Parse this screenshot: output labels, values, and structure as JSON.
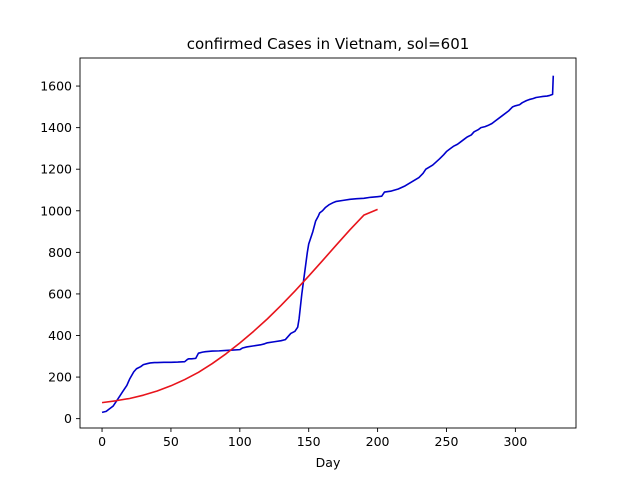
{
  "chart_data": {
    "type": "line",
    "title": "confirmed Cases in Vietnam, sol=601",
    "xlabel": "Day",
    "ylabel": "",
    "xlim": [
      -16,
      344
    ],
    "ylim": [
      -45,
      1735
    ],
    "xticks": [
      0,
      50,
      100,
      150,
      200,
      250,
      300
    ],
    "yticks": [
      0,
      200,
      400,
      600,
      800,
      1000,
      1200,
      1400,
      1600
    ],
    "grid": false,
    "series": [
      {
        "color": "#0000cc",
        "x": [
          0,
          3,
          5,
          8,
          10,
          13,
          15,
          18,
          20,
          23,
          25,
          28,
          30,
          33,
          35,
          38,
          40,
          45,
          50,
          55,
          60,
          62,
          63,
          65,
          68,
          70,
          73,
          75,
          80,
          85,
          90,
          95,
          100,
          102,
          105,
          110,
          115,
          118,
          120,
          125,
          130,
          133,
          135,
          137,
          140,
          142,
          143,
          144,
          145,
          146,
          147,
          148,
          149,
          150,
          151,
          152,
          153,
          155,
          157,
          158,
          160,
          162,
          165,
          168,
          170,
          175,
          180,
          185,
          190,
          195,
          200,
          203,
          205,
          210,
          215,
          220,
          225,
          230,
          233,
          235,
          240,
          245,
          248,
          250,
          253,
          255,
          258,
          260,
          263,
          265,
          268,
          270,
          273,
          275,
          278,
          280,
          283,
          285,
          290,
          295,
          298,
          300,
          303,
          305,
          308,
          310,
          313,
          315,
          318,
          320,
          323,
          325,
          327,
          327.5
        ],
        "y": [
          30,
          35,
          45,
          60,
          80,
          110,
          130,
          160,
          190,
          225,
          240,
          250,
          260,
          265,
          268,
          270,
          270,
          271,
          271,
          272,
          274,
          285,
          288,
          288,
          290,
          315,
          320,
          322,
          325,
          326,
          328,
          330,
          332,
          340,
          345,
          350,
          355,
          360,
          365,
          370,
          375,
          380,
          395,
          410,
          420,
          440,
          480,
          540,
          600,
          650,
          700,
          750,
          800,
          840,
          860,
          880,
          900,
          950,
          975,
          990,
          1000,
          1015,
          1030,
          1040,
          1045,
          1050,
          1055,
          1058,
          1060,
          1065,
          1068,
          1070,
          1090,
          1095,
          1105,
          1120,
          1140,
          1160,
          1180,
          1200,
          1220,
          1250,
          1270,
          1285,
          1300,
          1310,
          1320,
          1330,
          1345,
          1355,
          1365,
          1380,
          1390,
          1400,
          1405,
          1410,
          1420,
          1430,
          1455,
          1480,
          1500,
          1505,
          1510,
          1520,
          1530,
          1535,
          1540,
          1545,
          1548,
          1550,
          1552,
          1555,
          1560,
          1650
        ]
      },
      {
        "color": "#e8141c",
        "x": [
          0,
          10,
          20,
          30,
          40,
          50,
          60,
          70,
          80,
          90,
          100,
          110,
          120,
          130,
          140,
          150,
          160,
          170,
          180,
          190,
          200
        ],
        "y": [
          77,
          86,
          97,
          113,
          133,
          158,
          188,
          223,
          265,
          312,
          364,
          420,
          480,
          545,
          614,
          686,
          760,
          835,
          909,
          979,
          1007
        ]
      }
    ]
  }
}
